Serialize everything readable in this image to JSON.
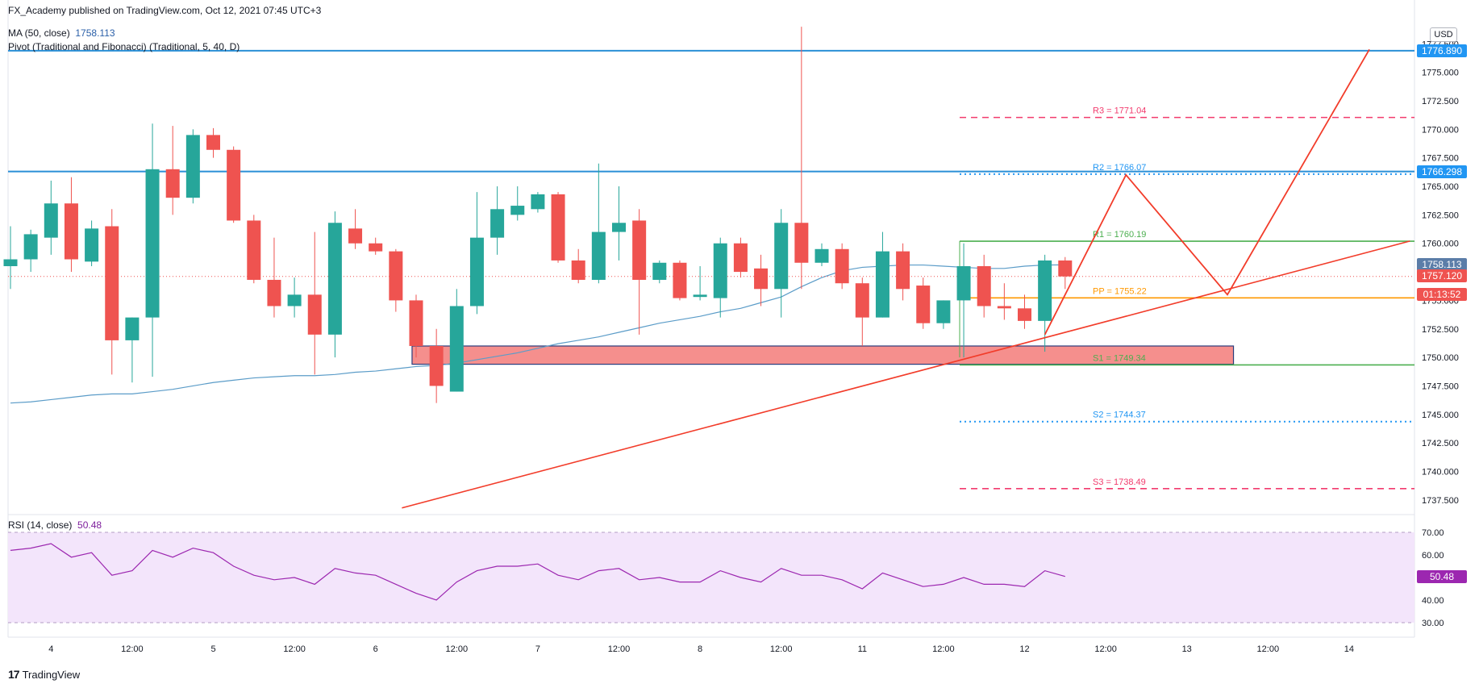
{
  "header": {
    "published": "FX_Academy published on TradingView.com, Oct 12, 2021 07:45 UTC+3",
    "ma_label": "MA (50, close)",
    "ma_value": "1758.113",
    "pivot_label": "Pivot (Traditional and Fibonacci) (Traditional, 5, 40, D)",
    "rsi_label": "RSI (14, close)",
    "rsi_value": "50.48",
    "usd": "USD",
    "logo": "TradingView"
  },
  "colors": {
    "up": "#26a69a",
    "down": "#ef5350",
    "ma": "#5b9cc8",
    "hline": "#2a8fd6",
    "pivot_r3": "#f23b6d",
    "pivot_r2": "#2196f3",
    "pivot_r1": "#4caf50",
    "pivot_pp": "#ff9800",
    "trend": "#f23c2a",
    "rsi": "#9c27b0",
    "rsi_band": "#f3e5fb"
  },
  "price_tags": [
    {
      "text": "1776.890",
      "value": 1776.89,
      "bg": "#2196f3"
    },
    {
      "text": "1766.298",
      "value": 1766.298,
      "bg": "#2196f3"
    },
    {
      "text": "1758.113",
      "value": 1758.113,
      "bg": "#5b7da8"
    },
    {
      "text": "1757.120",
      "value": 1757.12,
      "bg": "#ef5350"
    },
    {
      "text": "01:13:52",
      "value": 1755.5,
      "bg": "#ef5350"
    },
    {
      "text": "50.48",
      "value": 50.48,
      "bg": "#9c27b0",
      "pane": "rsi"
    }
  ],
  "chart_data": {
    "type": "candlestick",
    "price_axis": {
      "min": 1736.5,
      "max": 1779.5,
      "ticks": [
        "1737.500",
        "1740.000",
        "1742.500",
        "1745.000",
        "1747.500",
        "1750.000",
        "1752.500",
        "1755.000",
        "1757.500",
        "1760.000",
        "1762.500",
        "1765.000",
        "1767.500",
        "1770.000",
        "1772.500",
        "1775.000",
        "1777.500"
      ]
    },
    "rsi_axis": {
      "min": 25,
      "max": 75,
      "ticks": [
        "30.00",
        "40.00",
        "50.00",
        "60.00",
        "70.00"
      ],
      "band": [
        30,
        70
      ]
    },
    "time_axis": {
      "labels": [
        {
          "i": 2,
          "t": "4"
        },
        {
          "i": 6,
          "t": "12:00"
        },
        {
          "i": 10,
          "t": "5"
        },
        {
          "i": 14,
          "t": "12:00"
        },
        {
          "i": 18,
          "t": "6"
        },
        {
          "i": 22,
          "t": "12:00"
        },
        {
          "i": 26,
          "t": "7"
        },
        {
          "i": 30,
          "t": "12:00"
        },
        {
          "i": 34,
          "t": "8"
        },
        {
          "i": 38,
          "t": "12:00"
        },
        {
          "i": 42,
          "t": "11"
        },
        {
          "i": 46,
          "t": "12:00"
        },
        {
          "i": 50,
          "t": "12"
        },
        {
          "i": 54,
          "t": "12:00"
        },
        {
          "i": 58,
          "t": "13"
        },
        {
          "i": 62,
          "t": "12:00"
        },
        {
          "i": 66,
          "t": "14"
        }
      ]
    },
    "candles": [
      {
        "o": 1758.0,
        "h": 1761.5,
        "l": 1756.0,
        "c": 1758.6
      },
      {
        "o": 1758.6,
        "h": 1761.2,
        "l": 1757.5,
        "c": 1760.8
      },
      {
        "o": 1760.5,
        "h": 1765.5,
        "l": 1759.0,
        "c": 1763.5
      },
      {
        "o": 1763.5,
        "h": 1765.8,
        "l": 1757.5,
        "c": 1758.6
      },
      {
        "o": 1758.4,
        "h": 1762.0,
        "l": 1758.0,
        "c": 1761.3
      },
      {
        "o": 1761.5,
        "h": 1763.0,
        "l": 1748.5,
        "c": 1751.5
      },
      {
        "o": 1751.5,
        "h": 1753.5,
        "l": 1747.8,
        "c": 1753.5
      },
      {
        "o": 1753.5,
        "h": 1770.5,
        "l": 1748.3,
        "c": 1766.5
      },
      {
        "o": 1766.5,
        "h": 1770.3,
        "l": 1762.5,
        "c": 1764.0
      },
      {
        "o": 1764.0,
        "h": 1770.0,
        "l": 1763.5,
        "c": 1769.5
      },
      {
        "o": 1769.5,
        "h": 1770.1,
        "l": 1767.5,
        "c": 1768.2
      },
      {
        "o": 1768.2,
        "h": 1768.5,
        "l": 1761.8,
        "c": 1762.0
      },
      {
        "o": 1762.0,
        "h": 1762.5,
        "l": 1756.5,
        "c": 1756.8
      },
      {
        "o": 1756.8,
        "h": 1760.5,
        "l": 1753.5,
        "c": 1754.5
      },
      {
        "o": 1754.5,
        "h": 1757.0,
        "l": 1753.5,
        "c": 1755.5
      },
      {
        "o": 1755.5,
        "h": 1761.0,
        "l": 1748.5,
        "c": 1752.0
      },
      {
        "o": 1752.0,
        "h": 1762.8,
        "l": 1750.0,
        "c": 1761.8
      },
      {
        "o": 1761.3,
        "h": 1763.0,
        "l": 1759.5,
        "c": 1760.0
      },
      {
        "o": 1760.0,
        "h": 1760.5,
        "l": 1759.0,
        "c": 1759.3
      },
      {
        "o": 1759.3,
        "h": 1759.5,
        "l": 1754.0,
        "c": 1755.0
      },
      {
        "o": 1755.0,
        "h": 1755.5,
        "l": 1750.0,
        "c": 1751.0
      },
      {
        "o": 1751.0,
        "h": 1752.5,
        "l": 1746.0,
        "c": 1747.5
      },
      {
        "o": 1747.0,
        "h": 1756.0,
        "l": 1747.0,
        "c": 1754.5
      },
      {
        "o": 1754.5,
        "h": 1764.5,
        "l": 1753.8,
        "c": 1760.5
      },
      {
        "o": 1760.5,
        "h": 1765.0,
        "l": 1759.0,
        "c": 1763.0
      },
      {
        "o": 1762.5,
        "h": 1765.0,
        "l": 1762.0,
        "c": 1763.3
      },
      {
        "o": 1763.0,
        "h": 1764.5,
        "l": 1762.7,
        "c": 1764.3
      },
      {
        "o": 1764.3,
        "h": 1764.5,
        "l": 1758.3,
        "c": 1758.5
      },
      {
        "o": 1758.5,
        "h": 1759.5,
        "l": 1756.5,
        "c": 1756.8
      },
      {
        "o": 1756.8,
        "h": 1767.0,
        "l": 1756.5,
        "c": 1761.0
      },
      {
        "o": 1761.0,
        "h": 1765.0,
        "l": 1758.5,
        "c": 1761.8
      },
      {
        "o": 1762.0,
        "h": 1763.0,
        "l": 1752.0,
        "c": 1756.8
      },
      {
        "o": 1756.8,
        "h": 1758.5,
        "l": 1756.5,
        "c": 1758.3
      },
      {
        "o": 1758.3,
        "h": 1758.5,
        "l": 1755.0,
        "c": 1755.2
      },
      {
        "o": 1755.3,
        "h": 1758.0,
        "l": 1755.0,
        "c": 1755.5
      },
      {
        "o": 1755.2,
        "h": 1760.5,
        "l": 1753.5,
        "c": 1760.0
      },
      {
        "o": 1760.0,
        "h": 1760.5,
        "l": 1757.0,
        "c": 1757.5
      },
      {
        "o": 1757.8,
        "h": 1759.0,
        "l": 1754.5,
        "c": 1756.0
      },
      {
        "o": 1756.0,
        "h": 1763.0,
        "l": 1753.5,
        "c": 1761.8
      },
      {
        "o": 1761.8,
        "h": 1779.0,
        "l": 1756.0,
        "c": 1758.3
      },
      {
        "o": 1758.3,
        "h": 1760.0,
        "l": 1758.0,
        "c": 1759.5
      },
      {
        "o": 1759.5,
        "h": 1760.0,
        "l": 1756.0,
        "c": 1756.5
      },
      {
        "o": 1756.5,
        "h": 1757.0,
        "l": 1751.0,
        "c": 1753.5
      },
      {
        "o": 1753.5,
        "h": 1761.0,
        "l": 1753.5,
        "c": 1759.3
      },
      {
        "o": 1759.3,
        "h": 1760.0,
        "l": 1755.0,
        "c": 1756.0
      },
      {
        "o": 1756.3,
        "h": 1757.0,
        "l": 1752.5,
        "c": 1753.0
      },
      {
        "o": 1753.0,
        "h": 1755.0,
        "l": 1752.5,
        "c": 1755.0
      },
      {
        "o": 1755.0,
        "h": 1760.0,
        "l": 1750.0,
        "c": 1758.0
      },
      {
        "o": 1758.0,
        "h": 1759.0,
        "l": 1753.5,
        "c": 1754.5
      },
      {
        "o": 1754.5,
        "h": 1756.5,
        "l": 1753.3,
        "c": 1754.3
      },
      {
        "o": 1754.3,
        "h": 1755.5,
        "l": 1752.5,
        "c": 1753.2
      },
      {
        "o": 1753.2,
        "h": 1759.0,
        "l": 1750.5,
        "c": 1758.5
      },
      {
        "o": 1758.5,
        "h": 1758.8,
        "l": 1756.0,
        "c": 1757.1
      }
    ],
    "ma_line": [
      1746.0,
      1746.1,
      1746.3,
      1746.5,
      1746.7,
      1746.8,
      1746.8,
      1747.0,
      1747.2,
      1747.5,
      1747.8,
      1748.0,
      1748.2,
      1748.3,
      1748.4,
      1748.4,
      1748.5,
      1748.7,
      1748.8,
      1749.0,
      1749.2,
      1749.3,
      1749.5,
      1749.8,
      1750.1,
      1750.4,
      1750.8,
      1751.2,
      1751.5,
      1751.8,
      1752.2,
      1752.6,
      1753.0,
      1753.3,
      1753.6,
      1754.0,
      1754.3,
      1754.8,
      1755.3,
      1756.2,
      1757.0,
      1757.6,
      1757.9,
      1758.0,
      1758.1,
      1758.1,
      1758.0,
      1757.9,
      1757.8,
      1757.8,
      1758.0,
      1758.1,
      1758.113
    ],
    "rsi_line": [
      62,
      63,
      65,
      59,
      61,
      51,
      53,
      62,
      59,
      63,
      61,
      55,
      51,
      49,
      50,
      47,
      54,
      52,
      51,
      47,
      43,
      40,
      48,
      53,
      55,
      55,
      56,
      51,
      49,
      53,
      54,
      49,
      50,
      48,
      48,
      53,
      50,
      48,
      54,
      51,
      51,
      49,
      45,
      52,
      49,
      46,
      47,
      50,
      47,
      47,
      46,
      53,
      50.48
    ],
    "horizontal_lines": [
      {
        "value": 1776.89
      },
      {
        "value": 1766.298
      }
    ],
    "pivots": [
      {
        "key": "R3",
        "label": "R3 = 1771.04",
        "value": 1771.04,
        "style": "dashed"
      },
      {
        "key": "R2",
        "label": "R2 = 1766.07",
        "value": 1766.07,
        "style": "dotted"
      },
      {
        "key": "R1",
        "label": "R1 = 1760.19",
        "value": 1760.19,
        "style": "solid"
      },
      {
        "key": "PP",
        "label": "PP = 1755.22",
        "value": 1755.22,
        "style": "solid"
      },
      {
        "key": "S1",
        "label": "S1 = 1749.34",
        "value": 1749.34,
        "style": "solid"
      },
      {
        "key": "S2",
        "label": "S2 = 1744.37",
        "value": 1744.37,
        "style": "dotted"
      },
      {
        "key": "S3",
        "label": "S3 = 1738.49",
        "value": 1738.49,
        "style": "dashed"
      }
    ],
    "pivot_start_index": 46.8,
    "demand_zone": {
      "i0": 19.8,
      "i1": 60.3,
      "top": 1751.0,
      "bottom": 1749.4
    },
    "trendline": [
      {
        "i": 19.3,
        "p": 1736.8
      },
      {
        "i": 69.0,
        "p": 1760.2
      }
    ],
    "projection_path": [
      {
        "i": 51.0,
        "p": 1752.0
      },
      {
        "i": 55.0,
        "p": 1766.0
      },
      {
        "i": 60.0,
        "p": 1755.5
      },
      {
        "i": 67.0,
        "p": 1777.0
      }
    ]
  }
}
